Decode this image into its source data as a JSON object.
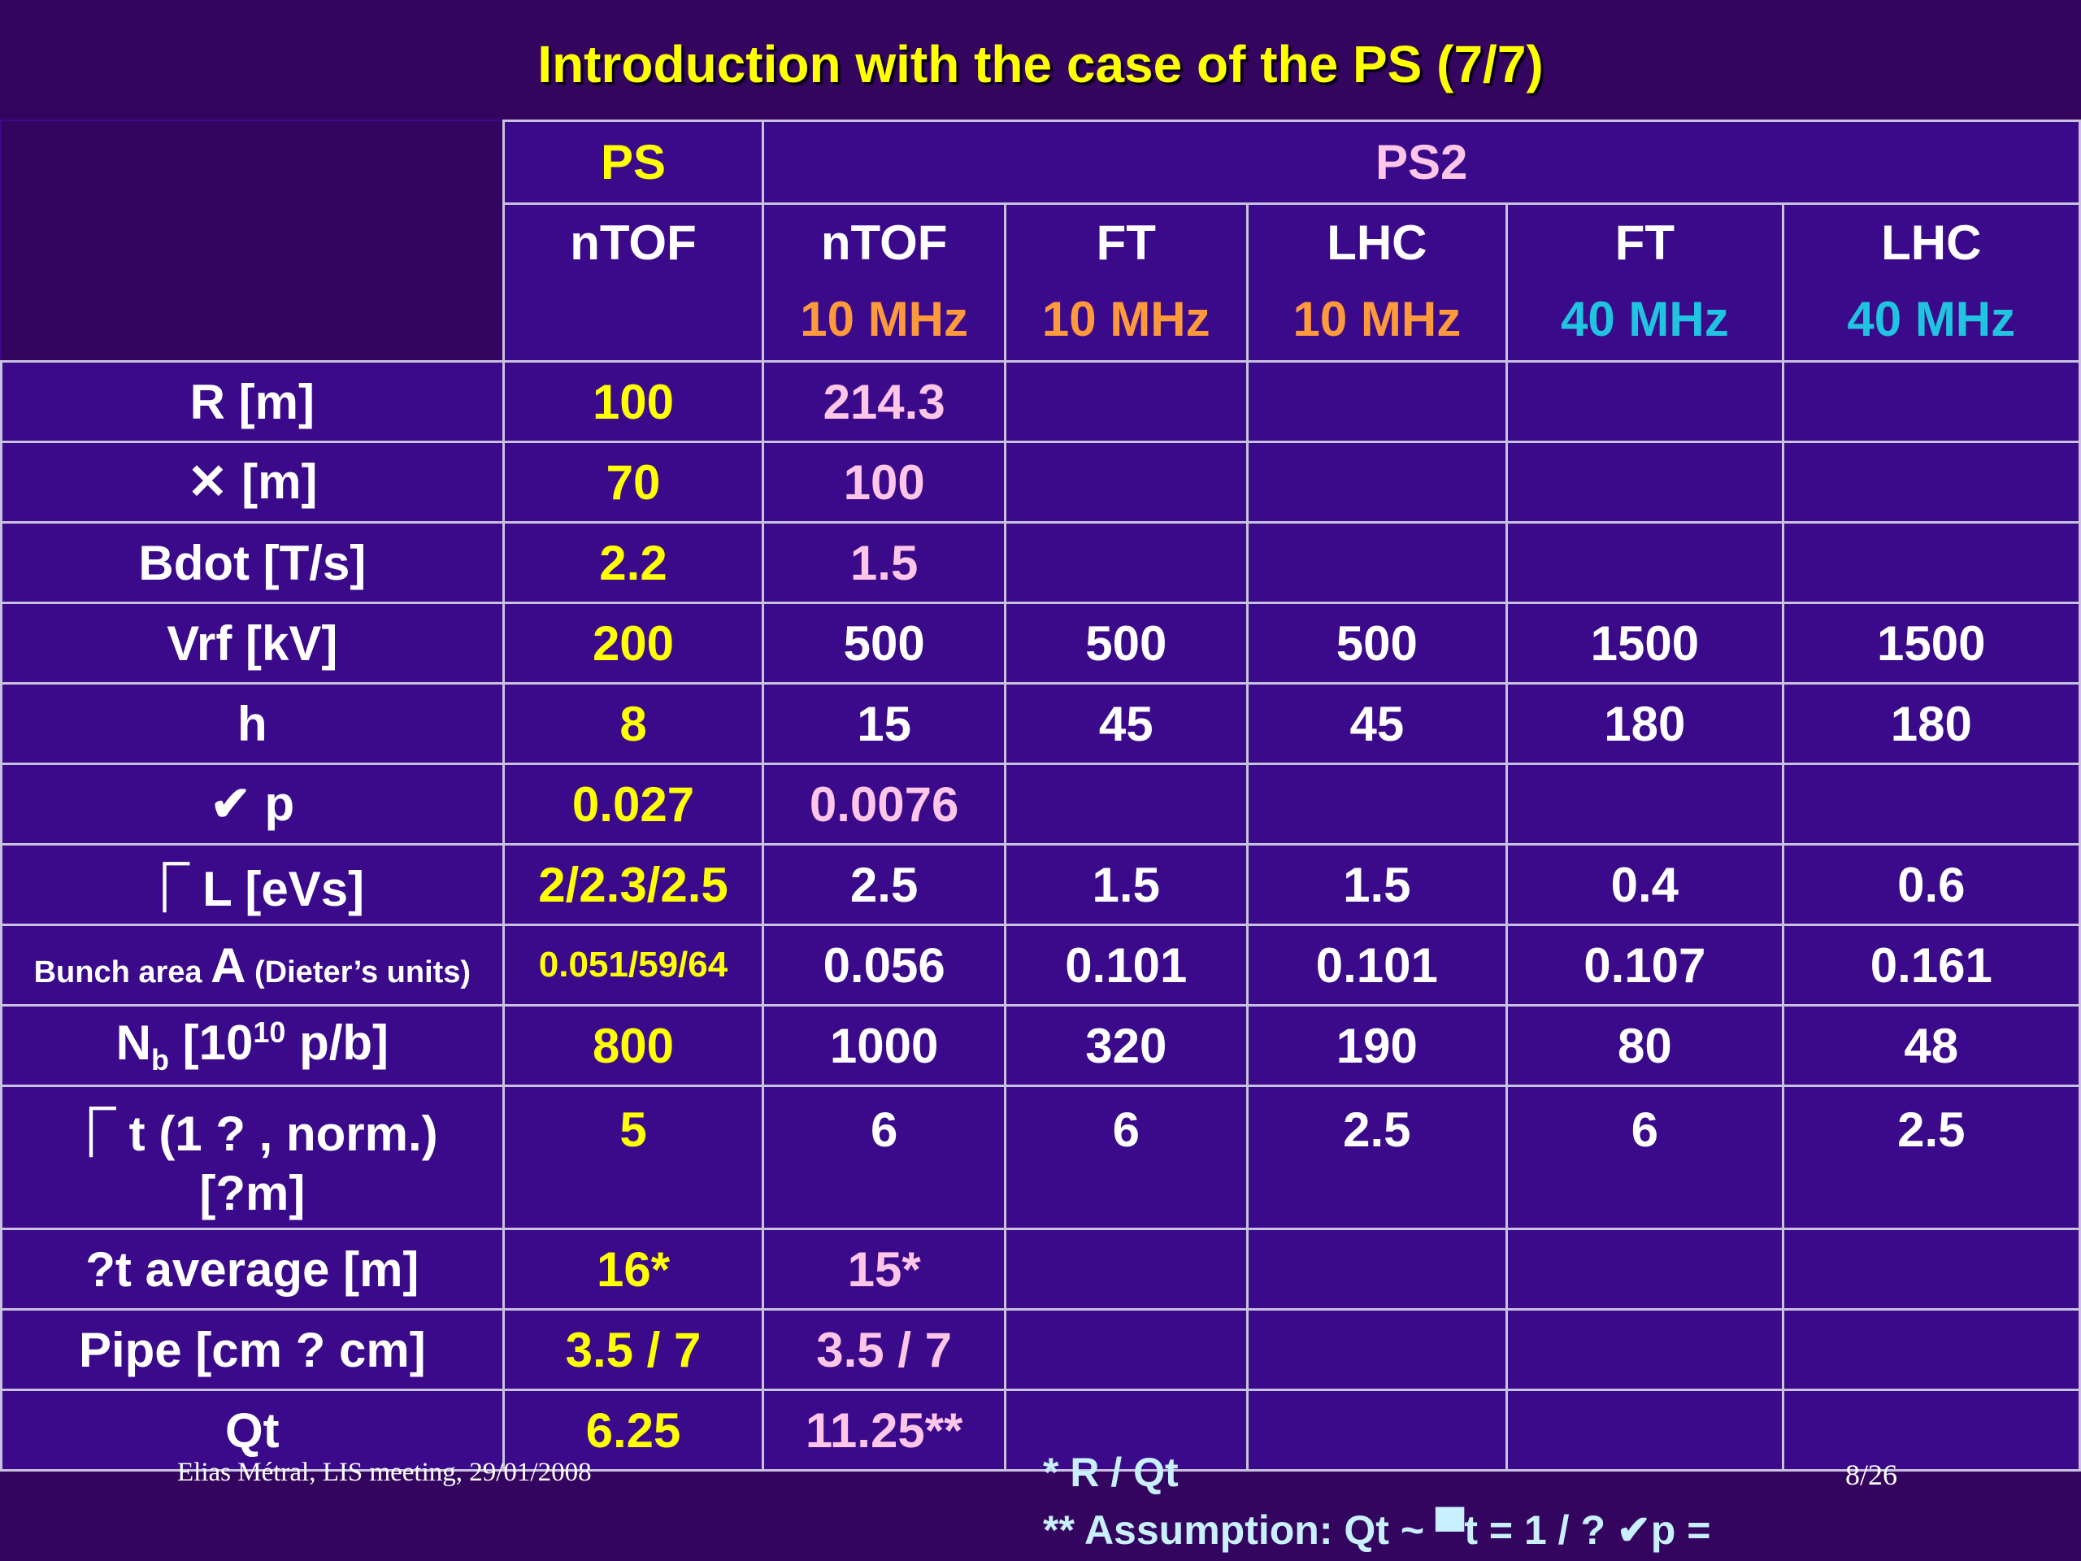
{
  "title": "Introduction with the case of the PS (7/7)",
  "header": {
    "ps": "PS",
    "ps2": "PS2",
    "columns": [
      {
        "name": "nTOF",
        "freq": ""
      },
      {
        "name": "nTOF",
        "freq": "10 MHz"
      },
      {
        "name": "FT",
        "freq": "10 MHz"
      },
      {
        "name": "LHC",
        "freq": "10 MHz"
      },
      {
        "name": "FT",
        "freq": "40 MHz"
      },
      {
        "name": "LHC",
        "freq": "40 MHz"
      }
    ]
  },
  "rows": [
    {
      "label": "R [m]",
      "values": [
        "100",
        "214.3",
        "",
        "",
        "",
        ""
      ]
    },
    {
      "label": "✕ [m]",
      "values": [
        "70",
        "100",
        "",
        "",
        "",
        ""
      ]
    },
    {
      "label": "Bdot [T/s]",
      "values": [
        "2.2",
        "1.5",
        "",
        "",
        "",
        ""
      ]
    },
    {
      "label": "Vrf [kV]",
      "values": [
        "200",
        "500",
        "500",
        "500",
        "1500",
        "1500"
      ]
    },
    {
      "label": "h",
      "values": [
        "8",
        "15",
        "45",
        "45",
        "180",
        "180"
      ]
    },
    {
      "label": "✔ p",
      "values": [
        "0.027",
        "0.0076",
        "",
        "",
        "",
        ""
      ]
    },
    {
      "label": "⎾ L [eVs]",
      "values": [
        "2/2.3/2.5",
        "2.5",
        "1.5",
        "1.5",
        "0.4",
        "0.6"
      ]
    },
    {
      "label_pre": "Bunch area ",
      "label_big": "A",
      "label_post": " (Dieter’s units)",
      "values": [
        "0.051/59/64",
        "0.056",
        "0.101",
        "0.101",
        "0.107",
        "0.161"
      ]
    },
    {
      "label_main": "N",
      "label_sub": "b",
      "label_mid": " [10",
      "label_sup": "10",
      "label_end": " p/b]",
      "values": [
        "800",
        "1000",
        "320",
        "190",
        "80",
        "48"
      ]
    },
    {
      "label_line1": "⎾ t (1 ? , norm.)",
      "label_line2": "[?m]",
      "values": [
        "5",
        "6",
        "6",
        "2.5",
        "6",
        "2.5"
      ]
    },
    {
      "label": "?t average [m]",
      "values": [
        "16*",
        "15*",
        "",
        "",
        "",
        ""
      ]
    },
    {
      "label": "Pipe [cm ? cm]",
      "values": [
        "3.5 / 7",
        "3.5 / 7",
        "",
        "",
        "",
        ""
      ]
    },
    {
      "label": "Qt",
      "values": [
        "6.25",
        "11.25**",
        "",
        "",
        "",
        ""
      ]
    }
  ],
  "notes": {
    "note1": "* R / Qt",
    "note2": "**  Assumption:  Qt ~ ▀t = 1 / ? ✔p ="
  },
  "footer": {
    "author": "Elias Métral, LIS meeting, 29/01/2008",
    "page": "8/26"
  }
}
